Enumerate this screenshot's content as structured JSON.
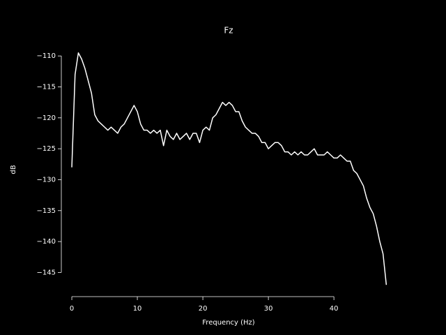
{
  "chart_data": {
    "type": "line",
    "title": "Fz",
    "xlabel": "Frequency (Hz)",
    "ylabel": "dB",
    "color": "#ffffff",
    "x": [
      0,
      0.5,
      1,
      1.5,
      2,
      2.5,
      3,
      3.5,
      4,
      4.5,
      5,
      5.5,
      6,
      6.5,
      7,
      7.5,
      8,
      8.5,
      9,
      9.5,
      10,
      10.5,
      11,
      11.5,
      12,
      12.5,
      13,
      13.5,
      14,
      14.5,
      15,
      15.5,
      16,
      16.5,
      17,
      17.5,
      18,
      18.5,
      19,
      19.5,
      20,
      20.5,
      21,
      21.5,
      22,
      22.5,
      23,
      23.5,
      24,
      24.5,
      25,
      25.5,
      26,
      26.5,
      27,
      27.5,
      28,
      28.5,
      29,
      29.5,
      30,
      30.5,
      31,
      31.5,
      32,
      32.5,
      33,
      33.5,
      34,
      34.5,
      35,
      35.5,
      36,
      36.5,
      37,
      37.5,
      38,
      38.5,
      39,
      39.5,
      40,
      40.5,
      41,
      41.5,
      42,
      42.5,
      43,
      43.5,
      44,
      44.5,
      45,
      45.5,
      46,
      46.5,
      47,
      47.5,
      48
    ],
    "values": [
      -128,
      -113,
      -109.5,
      -110.5,
      -112,
      -114,
      -116,
      -119.5,
      -120.5,
      -121,
      -121.5,
      -122,
      -121.5,
      -122,
      -122.5,
      -121.5,
      -121,
      -120,
      -119,
      -118,
      -119,
      -121,
      -122,
      -122,
      -122.5,
      -122,
      -122.5,
      -122,
      -124.5,
      -122,
      -123,
      -123.5,
      -122.5,
      -123.5,
      -123,
      -122.5,
      -123.5,
      -122.5,
      -122.5,
      -124,
      -122,
      -121.5,
      -122,
      -120,
      -119.5,
      -118.5,
      -117.5,
      -118,
      -117.5,
      -118,
      -119,
      -119,
      -120.5,
      -121.5,
      -122,
      -122.5,
      -122.5,
      -123,
      -124,
      -124,
      -125,
      -124.5,
      -124,
      -124,
      -124.5,
      -125.5,
      -125.5,
      -126,
      -125.5,
      -126,
      -125.5,
      -126,
      -126,
      -125.5,
      -125,
      -126,
      -126,
      -126,
      -125.5,
      -126,
      -126.5,
      -126.5,
      -126,
      -126.5,
      -127,
      -127,
      -128.5,
      -129,
      -130,
      -131,
      -133,
      -134.5,
      -135.5,
      -137.5,
      -140,
      -142,
      -147
    ],
    "xlim": [
      -2.45,
      50.3
    ],
    "xticks": [
      0,
      10,
      20,
      30,
      40
    ],
    "ylim": [
      -148.9,
      -107.5
    ],
    "yticks": [
      {
        "value": -110,
        "label": "−110"
      },
      {
        "value": -115,
        "label": "−115"
      },
      {
        "value": -120,
        "label": "−120"
      },
      {
        "value": -125,
        "label": "−125"
      },
      {
        "value": -130,
        "label": "−130"
      },
      {
        "value": -135,
        "label": "−135"
      },
      {
        "value": -140,
        "label": "−140"
      },
      {
        "value": -145,
        "label": "−145"
      }
    ]
  }
}
